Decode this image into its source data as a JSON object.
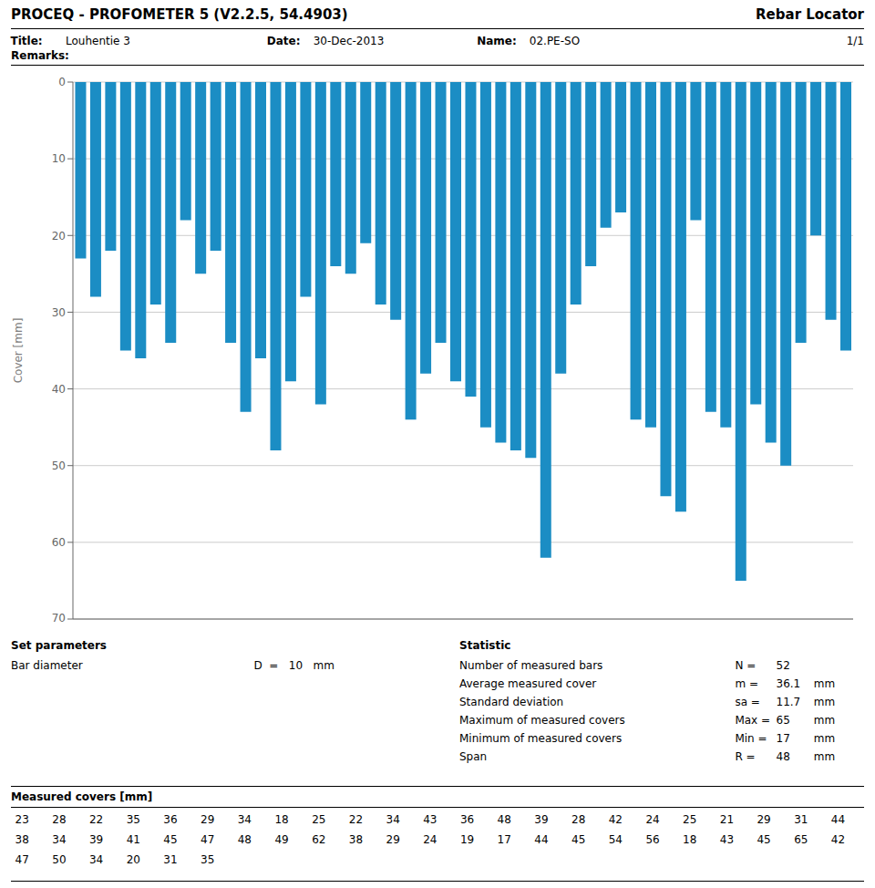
{
  "chart_data": {
    "type": "bar",
    "title": "PROCEQ - PROFOMETER 5 (V2.2.5, 54.4903)",
    "subtitle": "Rebar Locator",
    "y_label": "Cover [mm]",
    "categories": [
      null,
      null,
      null,
      null,
      null,
      null,
      null,
      null,
      null,
      null,
      null,
      null,
      null,
      null,
      null,
      null,
      null,
      null,
      null,
      null,
      null,
      null,
      null,
      null,
      null,
      null,
      null,
      null,
      null,
      null,
      null,
      null,
      null,
      null,
      null,
      null,
      null,
      null,
      null,
      null,
      null,
      null,
      null,
      null,
      null,
      null,
      null,
      null,
      null,
      null,
      null,
      null
    ],
    "values": [
      23,
      28,
      22,
      35,
      36,
      29,
      34,
      18,
      25,
      22,
      34,
      43,
      36,
      48,
      39,
      28,
      42,
      24,
      25,
      21,
      29,
      31,
      44,
      38,
      34,
      39,
      41,
      45,
      47,
      48,
      49,
      62,
      38,
      29,
      24,
      19,
      17,
      44,
      45,
      54,
      56,
      18,
      43,
      45,
      65,
      42,
      47,
      50,
      34,
      20,
      31,
      35
    ],
    "color": "#1B8DC4",
    "ylim": [
      0,
      70
    ],
    "yticks": [
      0,
      10,
      20,
      30,
      40,
      50,
      60,
      70
    ],
    "y_inverted": true,
    "grid": true,
    "tick_labels": "y",
    "annotations": {
      "info_row": [
        "Title:",
        "Louhentie 3",
        "Date:",
        "30-Dec-2013",
        "Name:",
        "02.PE-SO",
        "1/1"
      ],
      "remarks": "Remarks:",
      "set_parameters": [
        "Set parameters",
        "Bar diameter",
        "D  =   10   mm"
      ],
      "statistic_heading": "Statistic",
      "statistic_rows": [
        [
          "Number of measured bars",
          "N =",
          "52"
        ],
        [
          "Average measured cover",
          "m =",
          "36.1",
          "mm"
        ],
        [
          "Standard deviation",
          "sa =",
          "11.7",
          "mm"
        ],
        [
          "Maximum of measured covers",
          "Max =",
          "65",
          "mm"
        ],
        [
          "Minimum of measured covers",
          "Min =",
          "17",
          "mm"
        ],
        [
          "Span",
          "R =",
          "48",
          "mm"
        ]
      ],
      "measured_covers_label": "Measured covers [mm]"
    }
  }
}
